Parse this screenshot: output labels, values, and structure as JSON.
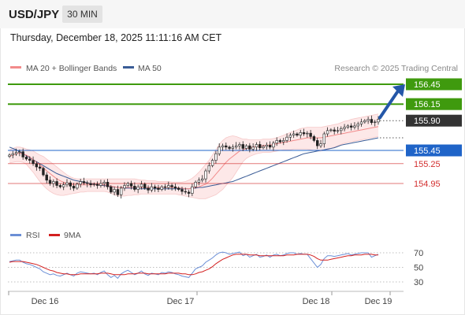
{
  "header": {
    "symbol": "USD/JPY",
    "timeframe": "30 MIN",
    "timestamp": "Thursday, December 18, 2025 11:11:16 AM CET"
  },
  "legend": {
    "ma20_bb": "MA 20 + Bollinger Bands",
    "ma50": "MA 50",
    "credit": "Research © 2025 Trading Central",
    "rsi": "RSI",
    "rsi_ma": "9MA"
  },
  "colors": {
    "up_candle": "#333333",
    "bollinger_fill": "#fde5e5",
    "ma20": "#f28b8b",
    "ma50": "#3a5c96",
    "target": "#3f9a0e",
    "current": "#333333",
    "pivot": "#1f64c8",
    "support": "#d32f2f",
    "arrow": "#2457a8",
    "rsi": "#6b8fd6",
    "rsi_ma": "#d32020"
  },
  "chart_data": [
    {
      "type": "candlestick",
      "title": "USD/JPY",
      "x_ticks": [
        "Dec 16",
        "Dec 17",
        "Dec 18",
        "Dec 19"
      ],
      "ylim": [
        154.72,
        156.52
      ],
      "levels": [
        {
          "value": 156.45,
          "label": "156.45",
          "role": "target"
        },
        {
          "value": 156.15,
          "label": "156.15",
          "role": "target"
        },
        {
          "value": 155.9,
          "label": "155.90",
          "role": "current"
        },
        {
          "value": 155.45,
          "label": "155.45",
          "role": "pivot"
        },
        {
          "value": 155.25,
          "label": "155.25",
          "role": "support"
        },
        {
          "value": 154.95,
          "label": "154.95",
          "role": "support"
        }
      ],
      "close": [
        155.38,
        155.4,
        155.42,
        155.43,
        155.35,
        155.32,
        155.3,
        155.25,
        155.2,
        155.18,
        155.08,
        155.0,
        154.95,
        154.98,
        154.92,
        154.9,
        154.93,
        154.96,
        154.91,
        154.88,
        154.94,
        154.98,
        154.96,
        154.95,
        154.93,
        154.94,
        154.92,
        154.95,
        154.97,
        154.9,
        154.82,
        154.86,
        154.78,
        154.88,
        154.92,
        154.95,
        154.91,
        154.86,
        154.9,
        154.94,
        154.88,
        154.85,
        154.9,
        154.88,
        154.86,
        154.9,
        154.89,
        154.92,
        154.9,
        154.88,
        154.86,
        154.83,
        154.82,
        154.8,
        154.9,
        154.97,
        155.0,
        155.02,
        155.14,
        155.22,
        155.3,
        155.4,
        155.5,
        155.52,
        155.5,
        155.48,
        155.5,
        155.52,
        155.54,
        155.48,
        155.52,
        155.47,
        155.5,
        155.54,
        155.49,
        155.51,
        155.53,
        155.5,
        155.56,
        155.6,
        155.58,
        155.6,
        155.65,
        155.68,
        155.7,
        155.68,
        155.72,
        155.7,
        155.71,
        155.66,
        155.6,
        155.52,
        155.55,
        155.7,
        155.75,
        155.76,
        155.74,
        155.75,
        155.78,
        155.8,
        155.82,
        155.8,
        155.82,
        155.85,
        155.88,
        155.9,
        155.92,
        155.87,
        155.88,
        155.92
      ],
      "ma20": [
        155.36,
        155.38,
        155.4,
        155.41,
        155.4,
        155.38,
        155.35,
        155.31,
        155.27,
        155.23,
        155.19,
        155.14,
        155.1,
        155.06,
        155.02,
        154.99,
        154.97,
        154.95,
        154.94,
        154.93,
        154.93,
        154.93,
        154.93,
        154.93,
        154.93,
        154.93,
        154.93,
        154.93,
        154.93,
        154.92,
        154.91,
        154.9,
        154.89,
        154.89,
        154.89,
        154.89,
        154.89,
        154.89,
        154.89,
        154.89,
        154.89,
        154.89,
        154.89,
        154.89,
        154.89,
        154.89,
        154.89,
        154.89,
        154.89,
        154.89,
        154.88,
        154.88,
        154.87,
        154.87,
        154.88,
        154.89,
        154.9,
        154.92,
        154.94,
        154.98,
        155.03,
        155.09,
        155.15,
        155.21,
        155.27,
        155.32,
        155.36,
        155.4,
        155.44,
        155.46,
        155.48,
        155.49,
        155.5,
        155.51,
        155.52,
        155.52,
        155.53,
        155.53,
        155.54,
        155.55,
        155.56,
        155.57,
        155.58,
        155.59,
        155.6,
        155.61,
        155.62,
        155.63,
        155.64,
        155.64,
        155.64,
        155.64,
        155.64,
        155.65,
        155.66,
        155.67,
        155.68,
        155.69,
        155.7,
        155.71,
        155.72,
        155.73,
        155.74,
        155.75,
        155.76,
        155.77,
        155.78,
        155.79,
        155.8,
        155.81
      ],
      "bb_upper": [
        155.46,
        155.48,
        155.5,
        155.5,
        155.49,
        155.47,
        155.46,
        155.44,
        155.41,
        155.38,
        155.36,
        155.32,
        155.28,
        155.24,
        155.2,
        155.16,
        155.12,
        155.08,
        155.05,
        155.03,
        155.02,
        155.02,
        155.02,
        155.02,
        155.02,
        155.02,
        155.02,
        155.02,
        155.02,
        155.02,
        155.02,
        155.02,
        155.02,
        155.02,
        155.02,
        155.02,
        155.02,
        155.02,
        155.01,
        155.0,
        155.0,
        154.99,
        154.99,
        154.99,
        154.98,
        154.98,
        154.98,
        154.98,
        154.97,
        154.97,
        154.97,
        154.97,
        154.98,
        155.0,
        155.03,
        155.07,
        155.12,
        155.18,
        155.24,
        155.3,
        155.38,
        155.46,
        155.54,
        155.6,
        155.64,
        155.66,
        155.67,
        155.66,
        155.64,
        155.62,
        155.62,
        155.61,
        155.61,
        155.61,
        155.61,
        155.62,
        155.62,
        155.62,
        155.63,
        155.64,
        155.66,
        155.68,
        155.7,
        155.72,
        155.74,
        155.76,
        155.78,
        155.79,
        155.8,
        155.8,
        155.8,
        155.8,
        155.8,
        155.81,
        155.82,
        155.83,
        155.84,
        155.85,
        155.87,
        155.89,
        155.9,
        155.92,
        155.93,
        155.94,
        155.95,
        155.96,
        155.97,
        155.98,
        155.99,
        156.0
      ],
      "bb_lower": [
        155.26,
        155.27,
        155.28,
        155.28,
        155.27,
        155.24,
        155.18,
        155.12,
        155.05,
        154.98,
        154.92,
        154.87,
        154.83,
        154.8,
        154.78,
        154.77,
        154.77,
        154.78,
        154.79,
        154.8,
        154.81,
        154.82,
        154.82,
        154.83,
        154.83,
        154.83,
        154.83,
        154.83,
        154.83,
        154.82,
        154.8,
        154.78,
        154.76,
        154.76,
        154.76,
        154.77,
        154.77,
        154.78,
        154.78,
        154.79,
        154.79,
        154.79,
        154.79,
        154.79,
        154.79,
        154.79,
        154.79,
        154.79,
        154.79,
        154.79,
        154.78,
        154.77,
        154.76,
        154.75,
        154.74,
        154.73,
        154.72,
        154.72,
        154.72,
        154.74,
        154.76,
        154.78,
        154.82,
        154.86,
        154.92,
        154.98,
        155.04,
        155.12,
        155.2,
        155.28,
        155.33,
        155.36,
        155.38,
        155.4,
        155.41,
        155.42,
        155.42,
        155.42,
        155.43,
        155.44,
        155.45,
        155.46,
        155.46,
        155.46,
        155.47,
        155.47,
        155.47,
        155.47,
        155.47,
        155.46,
        155.45,
        155.44,
        155.44,
        155.45,
        155.46,
        155.48,
        155.5,
        155.52,
        155.54,
        155.56,
        155.57,
        155.58,
        155.59,
        155.6,
        155.61,
        155.62,
        155.63,
        155.64,
        155.65,
        155.66
      ],
      "ma50": [
        155.5,
        155.48,
        155.46,
        155.43,
        155.4,
        155.37,
        155.34,
        155.31,
        155.28,
        155.25,
        155.22,
        155.19,
        155.16,
        155.13,
        155.1,
        155.08,
        155.06,
        155.04,
        155.02,
        155.0,
        154.99,
        154.98,
        154.97,
        154.96,
        154.95,
        154.94,
        154.93,
        154.92,
        154.92,
        154.91,
        154.9,
        154.9,
        154.89,
        154.89,
        154.88,
        154.88,
        154.88,
        154.88,
        154.87,
        154.87,
        154.87,
        154.87,
        154.87,
        154.87,
        154.87,
        154.87,
        154.87,
        154.87,
        154.87,
        154.87,
        154.87,
        154.87,
        154.87,
        154.87,
        154.88,
        154.88,
        154.89,
        154.89,
        154.9,
        154.91,
        154.92,
        154.93,
        154.94,
        154.95,
        154.96,
        154.97,
        154.98,
        155.0,
        155.02,
        155.04,
        155.06,
        155.08,
        155.1,
        155.12,
        155.14,
        155.16,
        155.18,
        155.2,
        155.22,
        155.24,
        155.26,
        155.28,
        155.3,
        155.32,
        155.34,
        155.36,
        155.38,
        155.4,
        155.41,
        155.42,
        155.43,
        155.44,
        155.45,
        155.46,
        155.47,
        155.48,
        155.49,
        155.51,
        155.53,
        155.54,
        155.55,
        155.56,
        155.57,
        155.58,
        155.59,
        155.6,
        155.61,
        155.62,
        155.63,
        155.64
      ]
    },
    {
      "type": "line",
      "title": "RSI",
      "series_names": [
        "RSI",
        "9MA"
      ],
      "ylim": [
        20,
        80
      ],
      "y_ticks": [
        70,
        50,
        30
      ],
      "rsi": [
        58,
        59,
        60,
        60,
        57,
        55,
        54,
        52,
        50,
        48,
        44,
        42,
        40,
        41,
        39,
        38,
        40,
        42,
        40,
        38,
        42,
        44,
        43,
        42,
        41,
        42,
        40,
        43,
        45,
        40,
        36,
        39,
        35,
        41,
        44,
        46,
        43,
        40,
        42,
        45,
        41,
        39,
        42,
        41,
        40,
        43,
        42,
        44,
        43,
        41,
        40,
        38,
        37,
        36,
        42,
        48,
        50,
        52,
        57,
        60,
        63,
        67,
        70,
        71,
        70,
        68,
        69,
        70,
        71,
        66,
        68,
        64,
        66,
        68,
        64,
        65,
        67,
        64,
        67,
        68,
        66,
        67,
        69,
        70,
        70,
        68,
        69,
        68,
        68,
        62,
        56,
        50,
        54,
        62,
        66,
        66,
        65,
        66,
        67,
        68,
        69,
        67,
        68,
        69,
        70,
        70,
        70,
        64,
        66,
        68
      ],
      "rsi_ma": [
        57,
        58,
        58,
        58,
        58,
        57,
        56,
        55,
        54,
        52,
        50,
        48,
        46,
        45,
        43,
        42,
        41,
        41,
        40,
        40,
        40,
        41,
        41,
        41,
        41,
        41,
        41,
        42,
        42,
        42,
        41,
        40,
        40,
        40,
        40,
        41,
        41,
        41,
        42,
        42,
        42,
        41,
        41,
        41,
        41,
        41,
        41,
        42,
        42,
        42,
        42,
        41,
        41,
        40,
        40,
        41,
        43,
        44,
        46,
        48,
        51,
        55,
        58,
        61,
        63,
        65,
        67,
        68,
        68,
        68,
        68,
        67,
        67,
        67,
        66,
        66,
        66,
        66,
        66,
        66,
        66,
        66,
        67,
        67,
        67,
        68,
        68,
        68,
        68,
        67,
        65,
        62,
        60,
        60,
        60,
        61,
        62,
        63,
        64,
        65,
        66,
        66,
        67,
        67,
        67,
        68,
        68,
        68,
        67,
        67
      ]
    }
  ]
}
